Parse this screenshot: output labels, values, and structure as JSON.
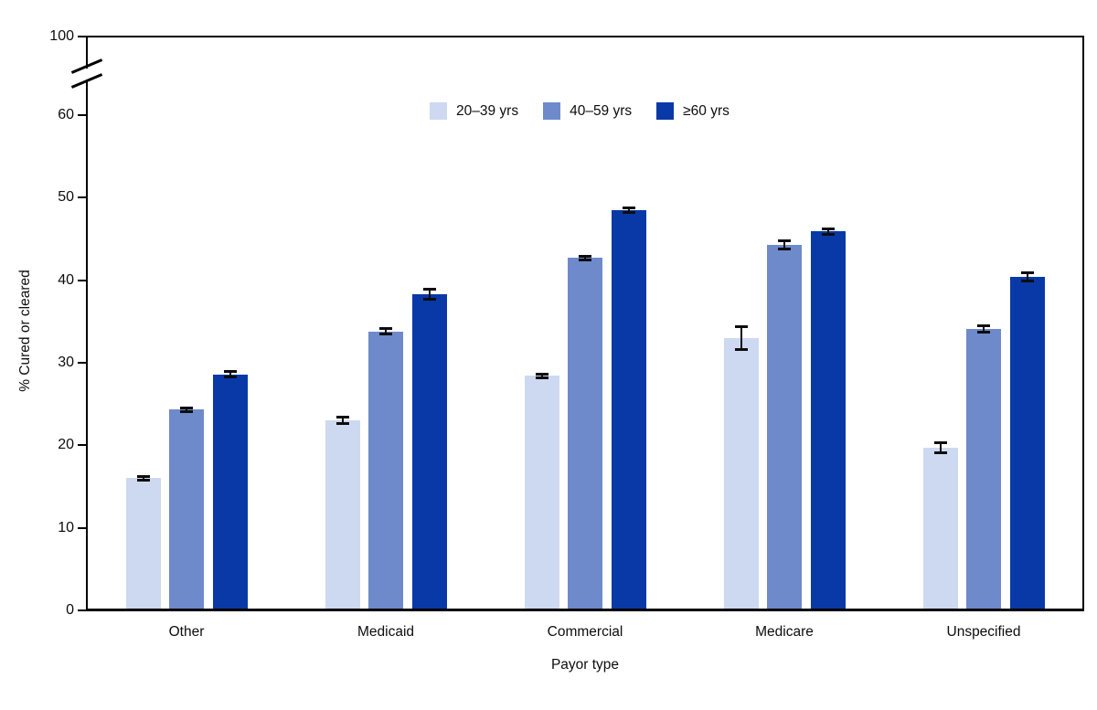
{
  "figure": {
    "ylabel": "% Cured or cleared",
    "xlabel": "Payor type"
  },
  "chart_data": {
    "type": "bar",
    "grouped": true,
    "title": "",
    "xlabel": "Payor type",
    "ylabel": "% Cured or cleared",
    "categories": [
      "Other",
      "Medicaid",
      "Commercial",
      "Medicare",
      "Unspecified"
    ],
    "series": [
      {
        "name": "20–39 yrs",
        "color": "#cdd9f0",
        "values": [
          16.0,
          23.0,
          28.4,
          33.0,
          19.7
        ],
        "errors": [
          0.2,
          0.4,
          0.2,
          1.4,
          0.6
        ]
      },
      {
        "name": "40–59 yrs",
        "color": "#6e8aca",
        "values": [
          24.3,
          33.8,
          42.7,
          44.3,
          34.1
        ],
        "errors": [
          0.25,
          0.3,
          0.25,
          0.5,
          0.35
        ]
      },
      {
        "name": "≥60 yrs",
        "color": "#0839a6",
        "values": [
          28.6,
          38.3,
          48.5,
          45.9,
          40.4
        ],
        "errors": [
          0.3,
          0.6,
          0.3,
          0.35,
          0.5
        ]
      }
    ],
    "y_ticks": [
      0,
      10,
      20,
      30,
      40,
      50,
      60
    ],
    "ylim": [
      0,
      60
    ],
    "y_axis_break": {
      "enabled": true,
      "upper_tick_label": "100"
    },
    "legend_position": "top-center",
    "grid": false,
    "error_bars": true,
    "axis_color": "#000000",
    "background_color": "#ffffff"
  }
}
